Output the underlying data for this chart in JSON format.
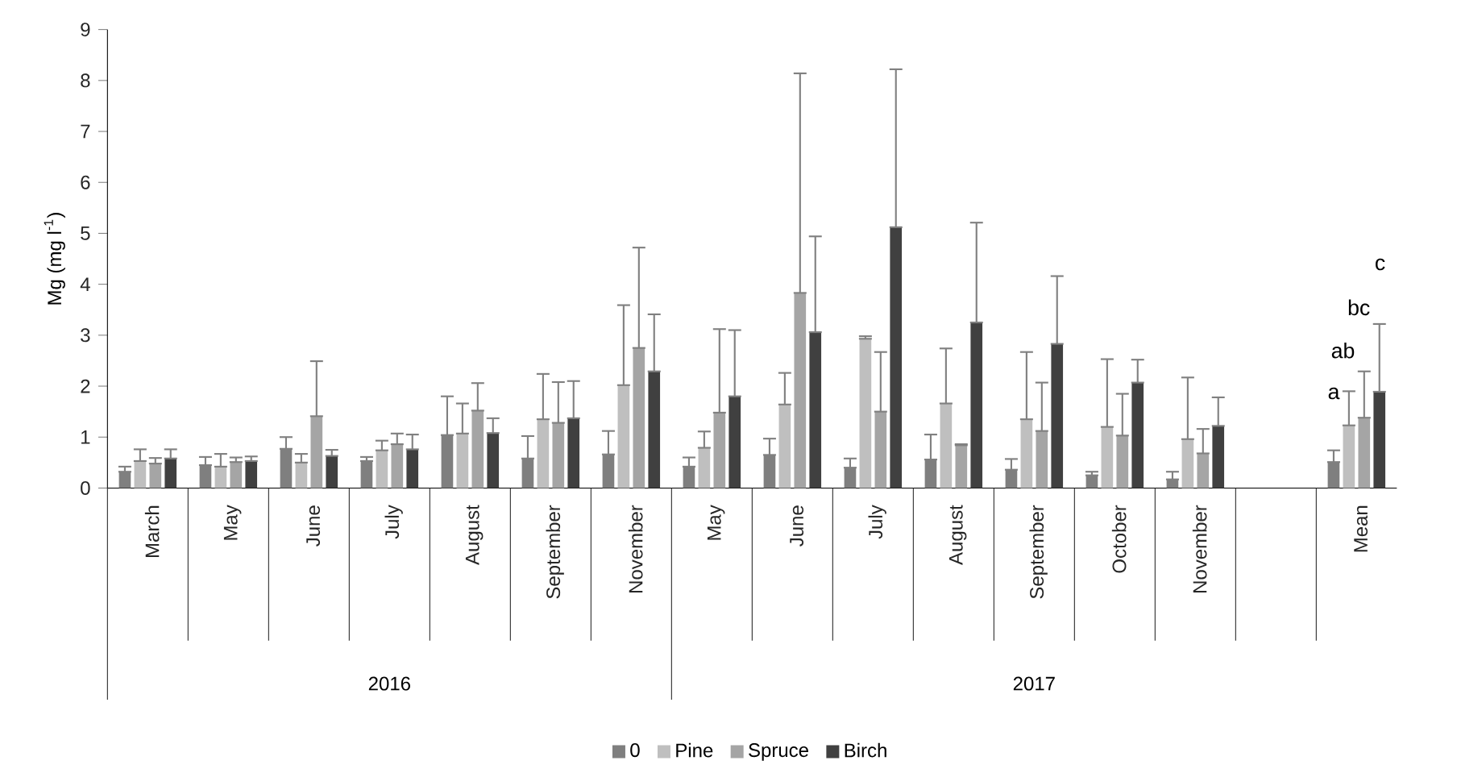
{
  "chart_data": {
    "type": "bar",
    "categories": [
      "March",
      "May",
      "June",
      "July",
      "August",
      "September",
      "November",
      "May",
      "June",
      "July",
      "August",
      "September",
      "October",
      "November",
      null,
      "Mean"
    ],
    "ylabel": "Mg (mg l$^{-1}$)",
    "ylim": [
      0,
      9
    ],
    "yticks": [
      0,
      1,
      2,
      3,
      4,
      5,
      6,
      7,
      8,
      9
    ],
    "legend": "bottom",
    "series": [
      {
        "name": "0",
        "color": "#7f7f7f",
        "values": [
          0.32,
          0.45,
          0.77,
          0.53,
          1.04,
          0.58,
          0.66,
          0.42,
          0.65,
          0.4,
          0.56,
          0.36,
          0.25,
          0.17,
          null,
          0.51
        ],
        "errors": [
          [
            0.32,
            0.42
          ],
          [
            0.45,
            0.61
          ],
          [
            0.77,
            1.0
          ],
          [
            0.53,
            0.61
          ],
          [
            1.04,
            1.8
          ],
          [
            0.58,
            1.02
          ],
          [
            0.66,
            1.12
          ],
          [
            0.42,
            0.6
          ],
          [
            0.65,
            0.97
          ],
          [
            0.4,
            0.58
          ],
          [
            0.56,
            1.05
          ],
          [
            0.36,
            0.57
          ],
          [
            0.25,
            0.32
          ],
          [
            0.17,
            0.32
          ],
          null,
          [
            0.51,
            0.74
          ]
        ]
      },
      {
        "name": "Pine",
        "color": "#bfbfbf",
        "values": [
          0.53,
          0.42,
          0.5,
          0.74,
          1.07,
          1.35,
          2.02,
          0.79,
          1.64,
          2.93,
          1.66,
          1.35,
          1.2,
          0.96,
          null,
          1.23
        ],
        "errors": [
          [
            0.53,
            0.76
          ],
          [
            0.42,
            0.67
          ],
          [
            0.5,
            0.67
          ],
          [
            0.74,
            0.93
          ],
          [
            1.07,
            1.66
          ],
          [
            1.35,
            2.24
          ],
          [
            2.02,
            3.59
          ],
          [
            0.79,
            1.11
          ],
          [
            1.64,
            2.26
          ],
          [
            2.93,
            2.98
          ],
          [
            1.66,
            2.74
          ],
          [
            1.35,
            2.67
          ],
          [
            1.2,
            2.53
          ],
          [
            0.96,
            2.17
          ],
          null,
          [
            1.23,
            1.9
          ]
        ]
      },
      {
        "name": "Spruce",
        "color": "#a5a5a5",
        "values": [
          0.48,
          0.51,
          1.41,
          0.86,
          1.52,
          1.28,
          2.75,
          1.48,
          3.83,
          1.5,
          0.84,
          1.12,
          1.03,
          0.68,
          null,
          1.38
        ],
        "errors": [
          [
            0.48,
            0.59
          ],
          [
            0.51,
            0.6
          ],
          [
            1.41,
            2.49
          ],
          [
            0.86,
            1.07
          ],
          [
            1.52,
            2.06
          ],
          [
            1.28,
            2.08
          ],
          [
            2.75,
            4.72
          ],
          [
            1.48,
            3.12
          ],
          [
            3.83,
            8.14
          ],
          [
            1.5,
            2.67
          ],
          [
            0.84,
            0.86
          ],
          [
            1.12,
            2.07
          ],
          [
            1.03,
            1.85
          ],
          [
            0.68,
            1.16
          ],
          null,
          [
            1.38,
            2.29
          ]
        ]
      },
      {
        "name": "Birch",
        "color": "#404040",
        "values": [
          0.58,
          0.53,
          0.63,
          0.76,
          1.08,
          1.37,
          2.29,
          1.8,
          3.06,
          5.12,
          3.25,
          2.83,
          2.07,
          1.22,
          null,
          1.89
        ],
        "errors": [
          [
            0.58,
            0.76
          ],
          [
            0.53,
            0.62
          ],
          [
            0.63,
            0.75
          ],
          [
            0.76,
            1.05
          ],
          [
            1.08,
            1.37
          ],
          [
            1.37,
            2.1
          ],
          [
            2.29,
            3.41
          ],
          [
            1.8,
            3.1
          ],
          [
            3.06,
            4.94
          ],
          [
            5.12,
            8.22
          ],
          [
            3.25,
            5.21
          ],
          [
            2.83,
            4.16
          ],
          [
            2.07,
            2.52
          ],
          [
            1.22,
            1.78
          ],
          null,
          [
            1.89,
            3.22
          ]
        ]
      }
    ],
    "annotations": [
      "2016",
      "2017",
      "a",
      "ab",
      "bc",
      "c"
    ]
  }
}
